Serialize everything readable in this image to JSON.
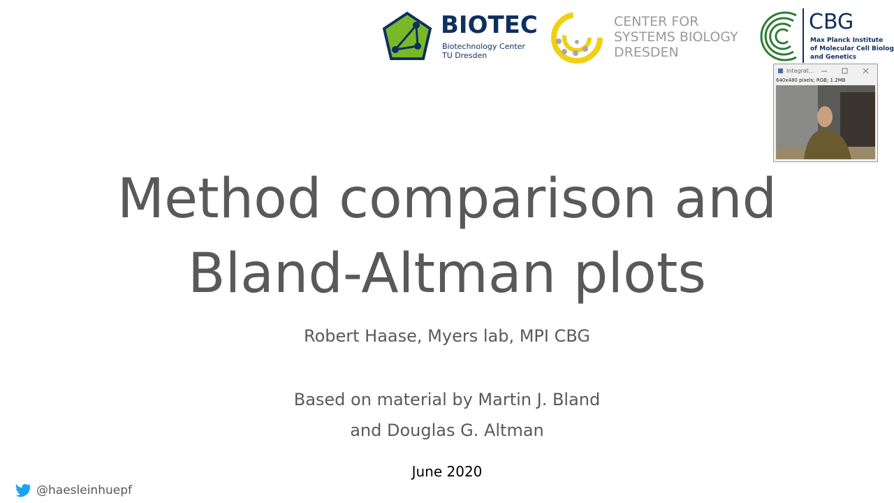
{
  "logos": {
    "biotec": {
      "name": "BIOTEC",
      "line1": "Biotechnology Center",
      "line2": "TU Dresden"
    },
    "csbd": {
      "line1": "CENTER FOR",
      "line2": "SYSTEMS BIOLOGY",
      "line3": "DRESDEN"
    },
    "cbg": {
      "name": "CBG",
      "line1": "Max Planck Institute",
      "line2": "of Molecular Cell Biology",
      "line3": "and Genetics"
    }
  },
  "window": {
    "title": "Integrat...",
    "info": "640x480 pixels; RGB; 1.2MB"
  },
  "slide": {
    "title_lines": [
      "Method comparison and",
      "Bland-Altman plots"
    ],
    "author": "Robert Haase, Myers lab, MPI CBG",
    "based_on": [
      "Based on material by Martin J. Bland",
      "and Douglas G. Altman"
    ],
    "date": "June 2020",
    "twitter": "@haesleinhuepf"
  }
}
